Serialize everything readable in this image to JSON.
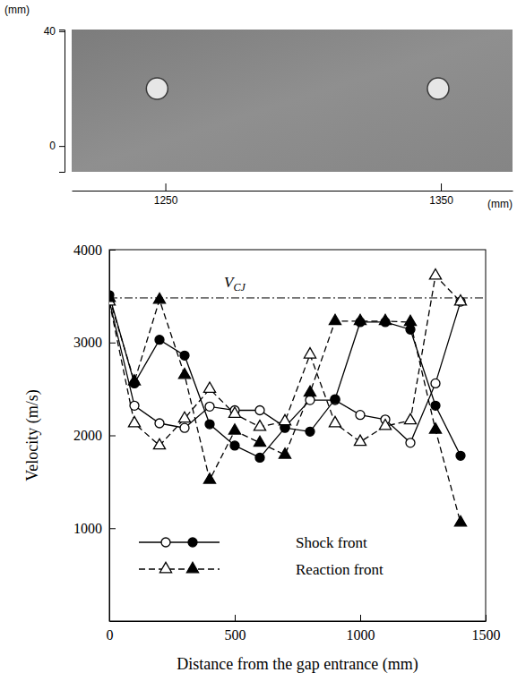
{
  "chart_data": [
    {
      "type": "image",
      "x_label": "(mm)",
      "y_label": "(mm)",
      "xlim": [
        1216,
        1376
      ],
      "xticks": [
        1250,
        1350
      ],
      "ylim": [
        -9,
        40.6
      ],
      "yticks": [
        0,
        40
      ],
      "holes": {
        "x": [
          1247,
          1349
        ],
        "y": [
          20,
          20
        ]
      }
    },
    {
      "type": "line",
      "x_label": "Distance from the gap entrance (mm)",
      "y_label": "Velocity (m/s)",
      "x": [
        0,
        100,
        200,
        300,
        400,
        500,
        600,
        700,
        800,
        900,
        1000,
        1100,
        1200,
        1300,
        1400
      ],
      "xlim": [
        0,
        1500
      ],
      "xticks": [
        0,
        500,
        1000,
        1500
      ],
      "ylim": [
        0,
        4000
      ],
      "yticks": [
        1000,
        2000,
        3000,
        4000
      ],
      "legend": "lower left",
      "reference_line": {
        "value": 3480,
        "label": "V",
        "label_sub": "CJ",
        "line_style": "dashdot"
      },
      "series": [
        {
          "name": "Shock front",
          "color": "#000000",
          "marker": "circle-open",
          "line_style": "solid",
          "values": [
            3450,
            2320,
            2130,
            2080,
            2310,
            2270,
            2270,
            2090,
            2380,
            2380,
            2220,
            2170,
            1920,
            2560,
            3440
          ]
        },
        {
          "name": "Shock front",
          "color": "#000000",
          "marker": "circle",
          "line_style": "solid",
          "values": [
            3510,
            2560,
            3030,
            2860,
            2120,
            1890,
            1760,
            2080,
            2040,
            2390,
            3220,
            3220,
            3140,
            2320,
            1780
          ]
        },
        {
          "name": "Reaction front",
          "color": "#000000",
          "marker": "triangle-open",
          "line_style": "dashed",
          "values": [
            3440,
            2130,
            1890,
            2180,
            2500,
            2230,
            2090,
            2150,
            2870,
            2130,
            1930,
            2100,
            2160,
            3720,
            3440
          ]
        },
        {
          "name": "Reaction front",
          "color": "#000000",
          "marker": "triangle",
          "line_style": "dashed",
          "values": [
            3480,
            2580,
            3460,
            2650,
            1520,
            2050,
            1920,
            1790,
            2460,
            3230,
            3230,
            3230,
            3220,
            2060,
            1060
          ]
        }
      ]
    }
  ]
}
